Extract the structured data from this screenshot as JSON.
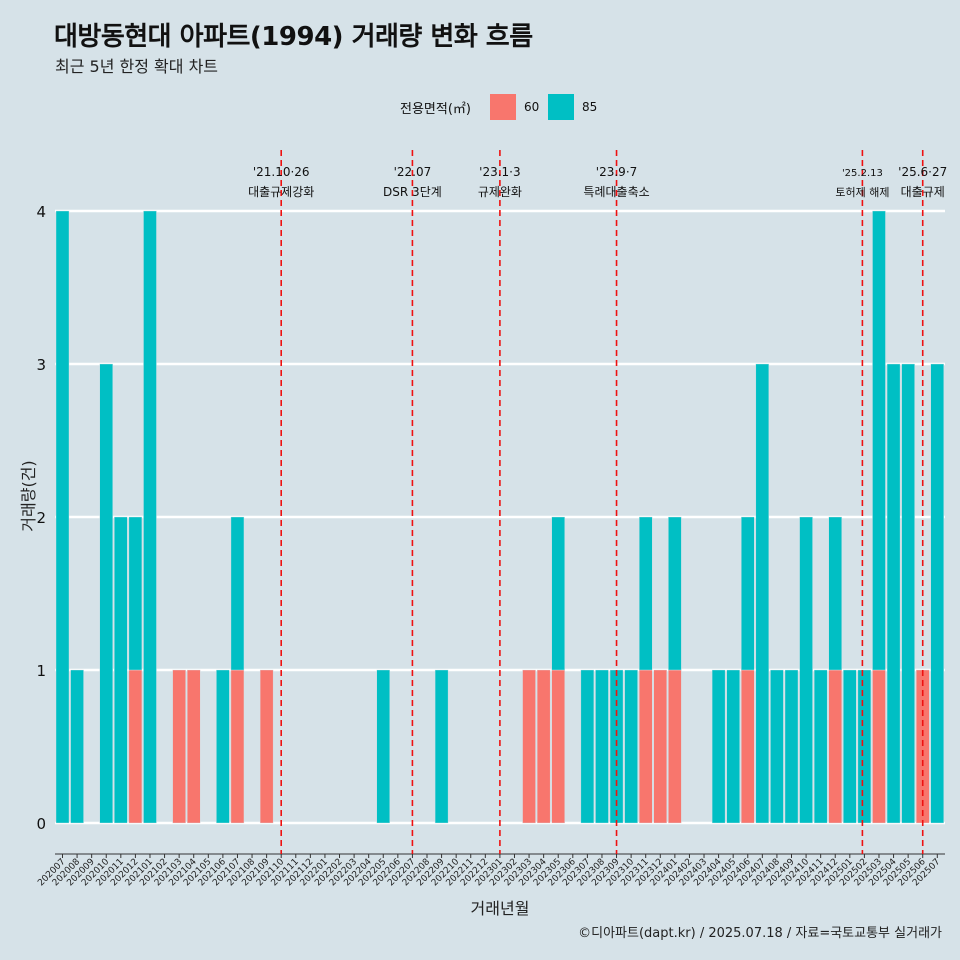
{
  "title": "대방동현대 아파트(1994) 거래량 변화 흐름",
  "subtitle": "최근 5년 한정 확대 차트",
  "caption": "©디아파트(dapt.kr) / 2025.07.18 / 자료=국토교통부 실거래가",
  "legend": {
    "title": "전용면적(㎡)",
    "items": [
      {
        "label": "60",
        "color": "#f8766d"
      },
      {
        "label": "85",
        "color": "#00bfc4"
      }
    ]
  },
  "chart_data": {
    "type": "bar",
    "stacked": true,
    "xlabel": "거래년월",
    "ylabel": "거래량(건)",
    "ylim": [
      0,
      4
    ],
    "yticks": [
      0,
      1,
      2,
      3,
      4
    ],
    "grid": "horizontal",
    "legend_position": "top",
    "categories": [
      "202007",
      "202008",
      "202009",
      "202010",
      "202011",
      "202012",
      "202101",
      "202102",
      "202103",
      "202104",
      "202105",
      "202106",
      "202107",
      "202108",
      "202109",
      "202110",
      "202111",
      "202112",
      "202201",
      "202202",
      "202203",
      "202204",
      "202205",
      "202206",
      "202207",
      "202208",
      "202209",
      "202210",
      "202211",
      "202212",
      "202301",
      "202302",
      "202303",
      "202304",
      "202305",
      "202306",
      "202307",
      "202308",
      "202309",
      "202310",
      "202311",
      "202312",
      "202401",
      "202402",
      "202403",
      "202404",
      "202405",
      "202406",
      "202407",
      "202408",
      "202409",
      "202410",
      "202411",
      "202412",
      "202501",
      "202502",
      "202503",
      "202504",
      "202505",
      "202506",
      "202507"
    ],
    "series": [
      {
        "name": "60",
        "color": "#f8766d",
        "values": [
          0,
          0,
          0,
          0,
          0,
          1,
          0,
          0,
          1,
          1,
          0,
          0,
          1,
          0,
          1,
          0,
          0,
          0,
          0,
          0,
          0,
          0,
          0,
          0,
          0,
          0,
          0,
          0,
          0,
          0,
          0,
          0,
          1,
          1,
          1,
          0,
          0,
          0,
          0,
          0,
          1,
          1,
          1,
          0,
          0,
          0,
          0,
          1,
          0,
          0,
          0,
          0,
          0,
          1,
          0,
          0,
          1,
          0,
          0,
          1,
          0
        ]
      },
      {
        "name": "85",
        "color": "#00bfc4",
        "values": [
          4,
          1,
          0,
          3,
          2,
          1,
          4,
          0,
          0,
          0,
          0,
          1,
          1,
          0,
          0,
          0,
          0,
          0,
          0,
          0,
          0,
          0,
          1,
          0,
          0,
          0,
          1,
          0,
          0,
          0,
          0,
          0,
          0,
          0,
          1,
          0,
          1,
          1,
          1,
          1,
          1,
          0,
          1,
          0,
          0,
          1,
          1,
          1,
          3,
          1,
          1,
          2,
          1,
          1,
          1,
          1,
          3,
          3,
          3,
          0,
          3
        ]
      }
    ],
    "events": [
      {
        "date": "'21.10·26",
        "label": "대출규제강화",
        "x": "202110"
      },
      {
        "date": "'22.07",
        "label": "DSR 3단계",
        "x": "202207"
      },
      {
        "date": "'23.1·3",
        "label": "규제완화",
        "x": "202301"
      },
      {
        "date": "'23.9·7",
        "label": "특례대출축소",
        "x": "202309"
      },
      {
        "date": "'25.2.13",
        "label": "토허제 해제",
        "x": "202502"
      },
      {
        "date": "'25.6·27",
        "label": "대출규제",
        "x": "202506"
      }
    ]
  }
}
